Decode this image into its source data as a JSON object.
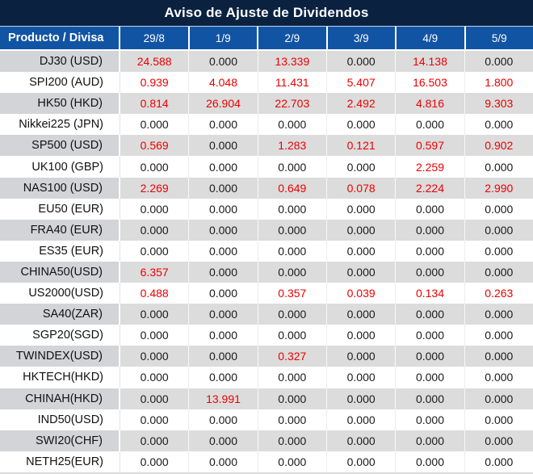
{
  "title": "Aviso de Ajuste de Dividendos",
  "colors": {
    "title_bar_bg": "#0a2140",
    "header_bg": "#1254a4",
    "alt_row_product_bg": "#d3d4d8",
    "alt_row_value_bg": "#dcdcdc",
    "nonzero_value_color": "#ec0000",
    "zero_value_color": "#1a1a1a"
  },
  "table": {
    "product_column_header": "Producto / Divisa",
    "date_columns": [
      "29/8",
      "1/9",
      "2/9",
      "3/9",
      "4/9",
      "5/9"
    ],
    "rows": [
      {
        "product": "DJ30 (USD)",
        "values": [
          "24.588",
          "0.000",
          "13.339",
          "0.000",
          "14.138",
          "0.000"
        ]
      },
      {
        "product": "SPI200 (AUD)",
        "values": [
          "0.939",
          "4.048",
          "11.431",
          "5.407",
          "16.503",
          "1.800"
        ]
      },
      {
        "product": "HK50 (HKD)",
        "values": [
          "0.814",
          "26.904",
          "22.703",
          "2.492",
          "4.816",
          "9.303"
        ]
      },
      {
        "product": "Nikkei225 (JPN)",
        "values": [
          "0.000",
          "0.000",
          "0.000",
          "0.000",
          "0.000",
          "0.000"
        ]
      },
      {
        "product": "SP500 (USD)",
        "values": [
          "0.569",
          "0.000",
          "1.283",
          "0.121",
          "0.597",
          "0.902"
        ]
      },
      {
        "product": "UK100 (GBP)",
        "values": [
          "0.000",
          "0.000",
          "0.000",
          "0.000",
          "2.259",
          "0.000"
        ]
      },
      {
        "product": "NAS100 (USD)",
        "values": [
          "2.269",
          "0.000",
          "0.649",
          "0.078",
          "2.224",
          "2.990"
        ]
      },
      {
        "product": "EU50 (EUR)",
        "values": [
          "0.000",
          "0.000",
          "0.000",
          "0.000",
          "0.000",
          "0.000"
        ]
      },
      {
        "product": "FRA40 (EUR)",
        "values": [
          "0.000",
          "0.000",
          "0.000",
          "0.000",
          "0.000",
          "0.000"
        ]
      },
      {
        "product": "ES35 (EUR)",
        "values": [
          "0.000",
          "0.000",
          "0.000",
          "0.000",
          "0.000",
          "0.000"
        ]
      },
      {
        "product": "CHINA50(USD)",
        "values": [
          "6.357",
          "0.000",
          "0.000",
          "0.000",
          "0.000",
          "0.000"
        ]
      },
      {
        "product": "US2000(USD)",
        "values": [
          "0.488",
          "0.000",
          "0.357",
          "0.039",
          "0.134",
          "0.263"
        ]
      },
      {
        "product": "SA40(ZAR)",
        "values": [
          "0.000",
          "0.000",
          "0.000",
          "0.000",
          "0.000",
          "0.000"
        ]
      },
      {
        "product": "SGP20(SGD)",
        "values": [
          "0.000",
          "0.000",
          "0.000",
          "0.000",
          "0.000",
          "0.000"
        ]
      },
      {
        "product": "TWINDEX(USD)",
        "values": [
          "0.000",
          "0.000",
          "0.327",
          "0.000",
          "0.000",
          "0.000"
        ]
      },
      {
        "product": "HKTECH(HKD)",
        "values": [
          "0.000",
          "0.000",
          "0.000",
          "0.000",
          "0.000",
          "0.000"
        ]
      },
      {
        "product": "CHINAH(HKD)",
        "values": [
          "0.000",
          "13.991",
          "0.000",
          "0.000",
          "0.000",
          "0.000"
        ]
      },
      {
        "product": "IND50(USD)",
        "values": [
          "0.000",
          "0.000",
          "0.000",
          "0.000",
          "0.000",
          "0.000"
        ]
      },
      {
        "product": "SWI20(CHF)",
        "values": [
          "0.000",
          "0.000",
          "0.000",
          "0.000",
          "0.000",
          "0.000"
        ]
      },
      {
        "product": "NETH25(EUR)",
        "values": [
          "0.000",
          "0.000",
          "0.000",
          "0.000",
          "0.000",
          "0.000"
        ]
      }
    ]
  },
  "chart_data": {
    "type": "table",
    "title": "Aviso de Ajuste de Dividendos",
    "columns": [
      "Producto / Divisa",
      "29/8",
      "1/9",
      "2/9",
      "3/9",
      "4/9",
      "5/9"
    ],
    "rows_note": "values duplicated from table.rows; non-zero values shown in red"
  }
}
